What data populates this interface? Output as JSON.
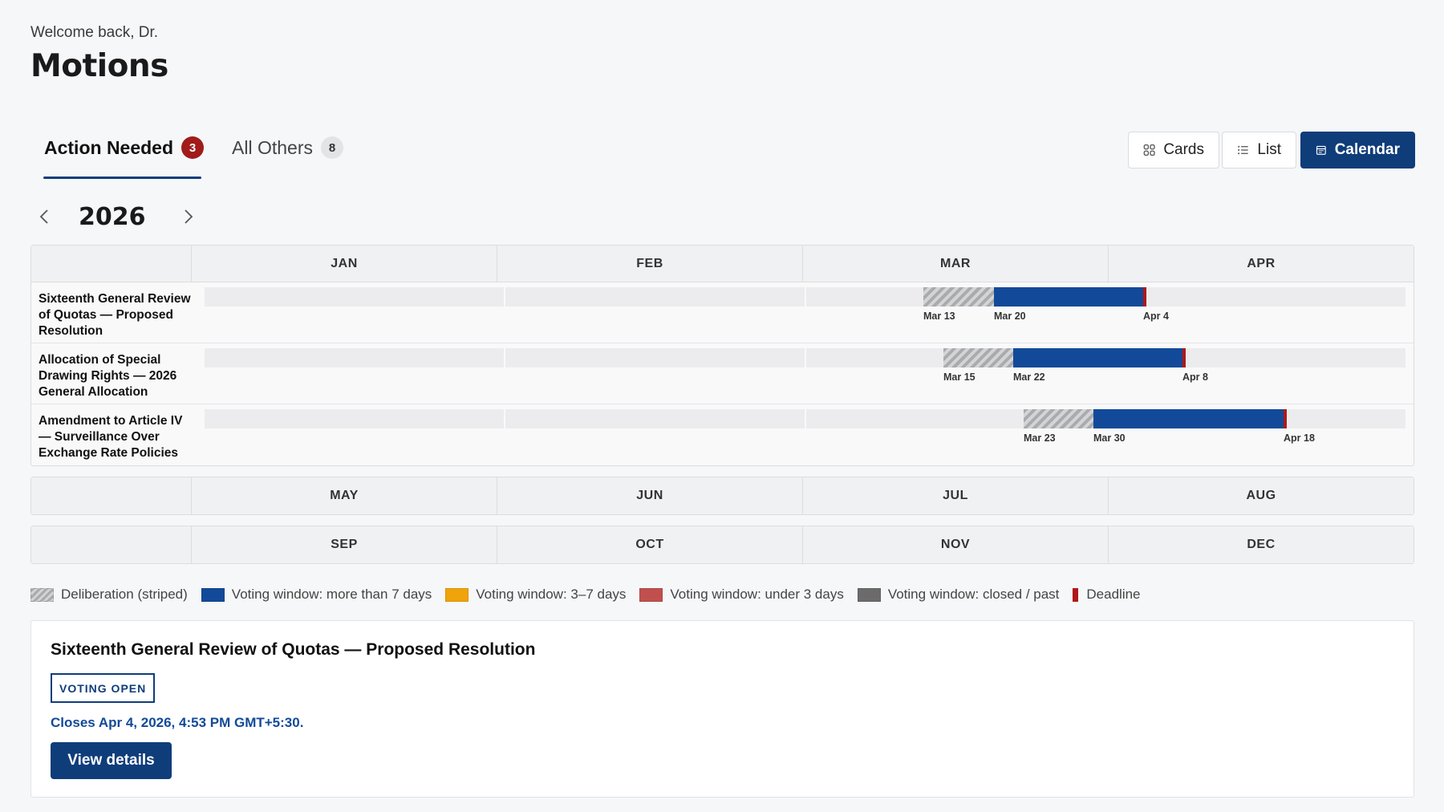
{
  "header": {
    "welcome": "Welcome back, Dr.",
    "title": "Motions"
  },
  "tabs": [
    {
      "label": "Action Needed",
      "count": "3"
    },
    {
      "label": "All Others",
      "count": "8"
    }
  ],
  "view_toggle": {
    "cards": "Cards",
    "list": "List",
    "calendar": "Calendar",
    "selected": "Calendar"
  },
  "calendar": {
    "year": "2026",
    "quarters": [
      [
        "JAN",
        "FEB",
        "MAR",
        "APR"
      ],
      [
        "MAY",
        "JUN",
        "JUL",
        "AUG"
      ],
      [
        "SEP",
        "OCT",
        "NOV",
        "DEC"
      ]
    ],
    "motions": [
      {
        "name": "Sixteenth General Review of Quotas — Proposed Resolution",
        "deliberation_start": "Mar 13",
        "voting_start": "Mar 20",
        "deadline": "Apr 4"
      },
      {
        "name": "Allocation of Special Drawing Rights — 2026 General Allocation",
        "deliberation_start": "Mar 15",
        "voting_start": "Mar 22",
        "deadline": "Apr 8"
      },
      {
        "name": "Amendment to Article IV — Surveillance Over Exchange Rate Policies",
        "deliberation_start": "Mar 23",
        "voting_start": "Mar 30",
        "deadline": "Apr 18"
      }
    ]
  },
  "legend": [
    {
      "label": "Deliberation (striped)",
      "type": "striped"
    },
    {
      "label": "Voting window: more than 7 days",
      "color": "#124a99"
    },
    {
      "label": "Voting window: 3–7 days",
      "color": "#f0a30a"
    },
    {
      "label": "Voting window: under 3 days",
      "color": "#c0504d"
    },
    {
      "label": "Voting window: closed / past",
      "color": "#6b6b6b"
    },
    {
      "label": "Deadline",
      "color": "#b01818"
    }
  ],
  "detail": {
    "title": "Sixteenth General Review of Quotas — Proposed Resolution",
    "status": "VOTING OPEN",
    "closes": "Closes Apr 4, 2026, 4:53 PM GMT+5:30.",
    "button": "View details"
  },
  "colors": {
    "primary": "#0f3d7a",
    "voting": "#124a99",
    "deadline": "#b01818",
    "badge": "#a11b1b"
  }
}
